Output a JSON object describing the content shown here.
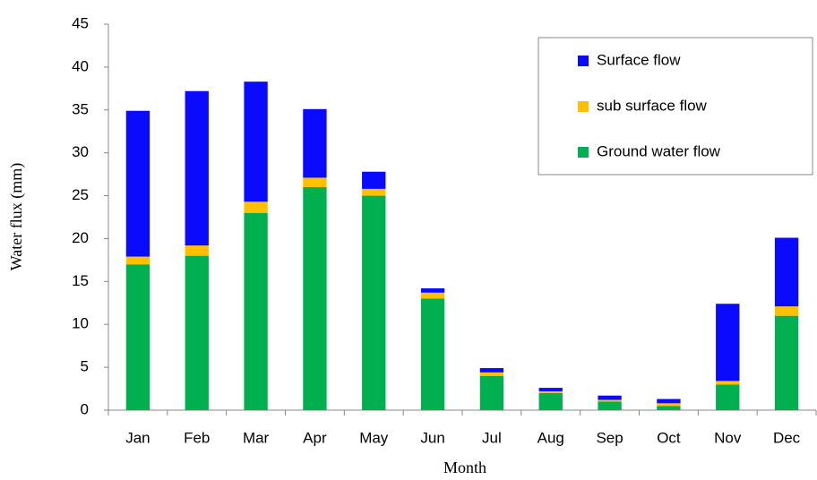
{
  "chart_data": {
    "type": "stacked_bar",
    "y_label": "Water flux (mm)",
    "x_label": "Month",
    "categories": [
      "Jan",
      "Feb",
      "Mar",
      "Apr",
      "May",
      "Jun",
      "Jul",
      "Aug",
      "Sep",
      "Oct",
      "Nov",
      "Dec"
    ],
    "series": [
      {
        "name": "Surface flow",
        "color": "#0a0aff",
        "values": [
          17,
          18,
          14,
          8,
          2,
          0.5,
          0.5,
          0.4,
          0.5,
          0.5,
          9,
          8
        ]
      },
      {
        "name": "sub surface flow",
        "color": "#ffc000",
        "values": [
          0.9,
          1.2,
          1.3,
          1.1,
          0.8,
          0.7,
          0.4,
          0.2,
          0.2,
          0.3,
          0.4,
          1.1
        ]
      },
      {
        "name": "Ground water flow",
        "color": "#00b050",
        "values": [
          17,
          18,
          23,
          26,
          25,
          13,
          4,
          2,
          1,
          0.5,
          3,
          11
        ]
      }
    ],
    "ylim": [
      0,
      45
    ],
    "yticks": [
      0,
      5,
      10,
      15,
      20,
      25,
      30,
      35,
      40,
      45
    ],
    "grid": false
  }
}
